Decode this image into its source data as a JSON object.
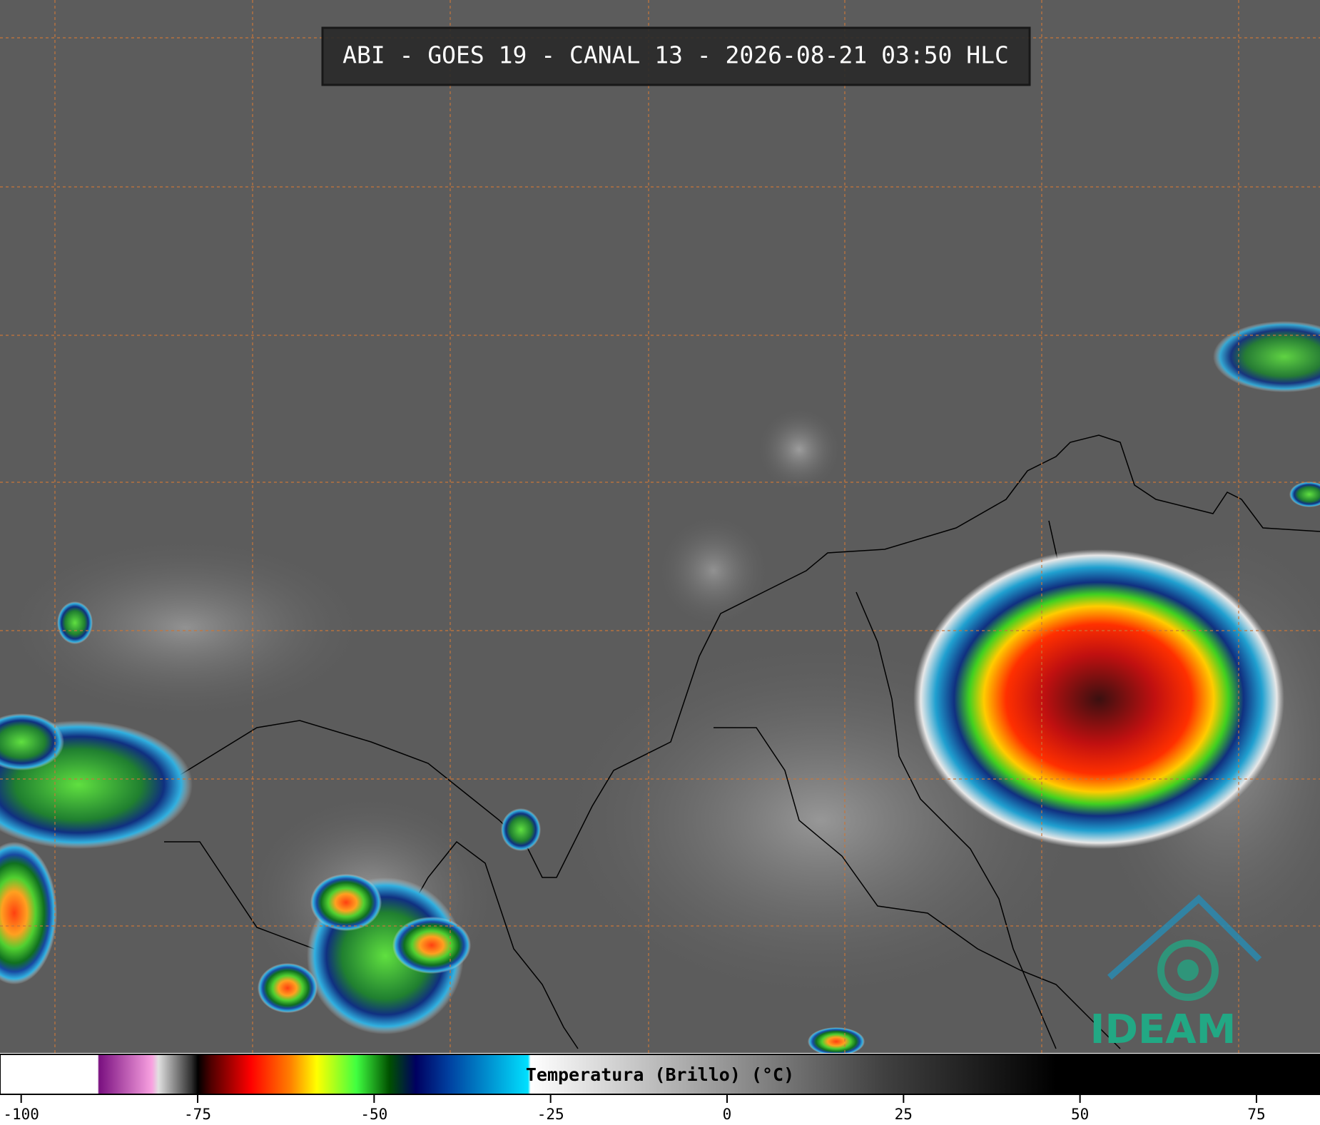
{
  "title": "ABI - GOES 19 - CANAL 13 - 2026-08-21 03:50 HLC",
  "colorbar": {
    "label": "Temperatura (Brillo) (°C)",
    "lim": [
      -103,
      84
    ],
    "ticks": [
      -100,
      -75,
      -50,
      -25,
      0,
      25,
      50,
      75
    ]
  },
  "logo": "IDEAM"
}
